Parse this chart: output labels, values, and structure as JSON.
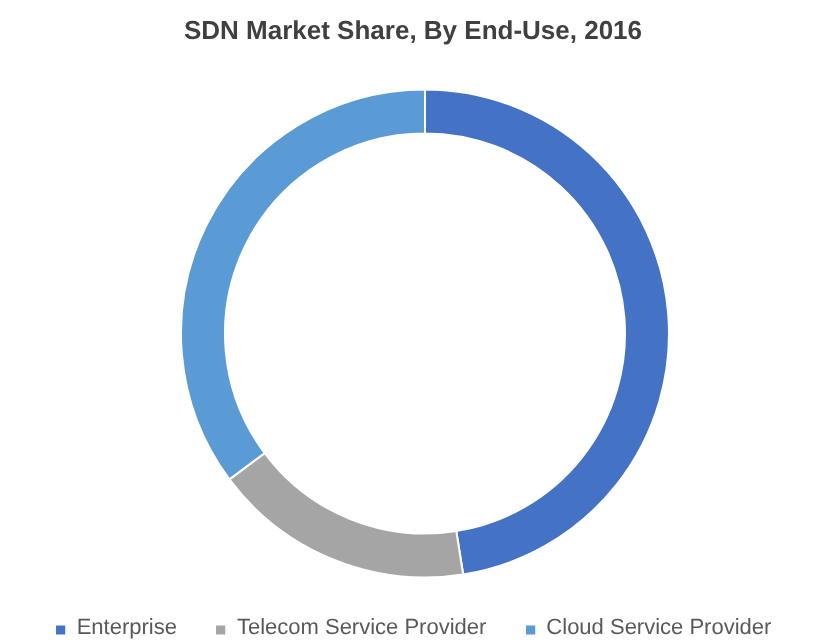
{
  "chart_data": {
    "type": "donut",
    "title": "SDN Market Share, By End-Use, 2016",
    "categories": [
      "Enterprise",
      "Telecom Service Provider",
      "Cloud Service Provider"
    ],
    "values": [
      47.5,
      17.3,
      35.2
    ],
    "colors": [
      "#4472c4",
      "#a5a5a5",
      "#5b9bd5"
    ],
    "legend": "bottom"
  }
}
